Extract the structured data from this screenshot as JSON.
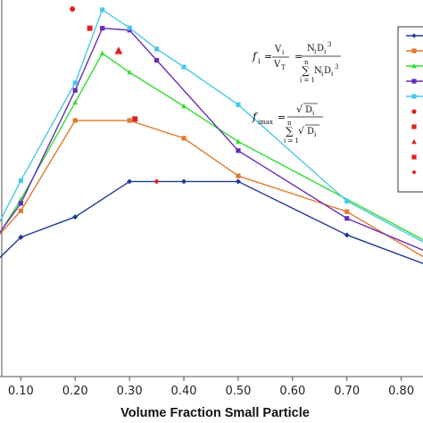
{
  "chart_data": {
    "type": "line",
    "title": "",
    "xlabel": "Volume Fraction Small Particle",
    "ylabel": "",
    "xlim": [
      0.065,
      0.84
    ],
    "ylim": [
      0.0,
      1.0
    ],
    "x_tick_labels": [
      "0.10",
      "0.20",
      "0.30",
      "0.40",
      "0.50",
      "0.60",
      "0.70",
      "0.80"
    ],
    "x_ticks": [
      0.1,
      0.2,
      0.3,
      0.4,
      0.5,
      0.6,
      0.7,
      0.8
    ],
    "grid": false,
    "legend": "top-right, entries partially cropped (marker swatches only visible)",
    "series": [
      {
        "color": "#1f3a93",
        "marker": "diamond",
        "x": [
          0.05,
          0.1,
          0.2,
          0.3,
          0.4,
          0.5,
          0.7,
          0.85
        ],
        "y": [
          0.3,
          0.37,
          0.424,
          0.518,
          0.518,
          0.518,
          0.376,
          0.295
        ]
      },
      {
        "color": "#e07a2e",
        "marker": "square",
        "x": [
          0.05,
          0.1,
          0.2,
          0.3,
          0.4,
          0.5,
          0.7,
          0.85
        ],
        "y": [
          0.36,
          0.44,
          0.68,
          0.68,
          0.633,
          0.533,
          0.438,
          0.31
        ]
      },
      {
        "color": "#33dd33",
        "marker": "triangle",
        "x": [
          0.05,
          0.1,
          0.2,
          0.25,
          0.3,
          0.4,
          0.5,
          0.85
        ],
        "y": [
          0.355,
          0.47,
          0.728,
          0.858,
          0.808,
          0.718,
          0.624,
          0.356
        ]
      },
      {
        "color": "#6a2cb8",
        "marker": "square",
        "x": [
          0.05,
          0.1,
          0.2,
          0.25,
          0.3,
          0.35,
          0.5,
          0.7,
          0.85
        ],
        "y": [
          0.36,
          0.46,
          0.76,
          0.925,
          0.92,
          0.84,
          0.6,
          0.42,
          0.33
        ]
      },
      {
        "color": "#48c8e8",
        "marker": "square",
        "x": [
          0.05,
          0.1,
          0.2,
          0.25,
          0.3,
          0.35,
          0.4,
          0.5,
          0.7,
          0.85
        ],
        "y": [
          0.38,
          0.52,
          0.78,
          0.974,
          0.926,
          0.87,
          0.822,
          0.722,
          0.466,
          0.35
        ]
      }
    ],
    "isolated_points": [
      {
        "x": 0.195,
        "y": 0.976,
        "marker": "circle",
        "color": "#e02020"
      },
      {
        "x": 0.227,
        "y": 0.925,
        "marker": "square",
        "color": "#e02020"
      },
      {
        "x": 0.28,
        "y": 0.865,
        "marker": "triangle",
        "color": "#e02020"
      },
      {
        "x": 0.31,
        "y": 0.684,
        "marker": "square",
        "color": "#e02020"
      },
      {
        "x": 0.35,
        "y": 0.518,
        "marker": "diamond",
        "color": "#e02020"
      }
    ]
  },
  "formula": {
    "f_i": "f",
    "f_i_sub": "i",
    "eq": "=",
    "v_i": "V",
    "v_i_sub": "i",
    "v_t": "V",
    "v_t_sub": "T",
    "num2": "N",
    "num2_sub1": "i",
    "num2_d": "D",
    "num2_sub2": "i",
    "num2_sup": "3",
    "sum_top": "n",
    "sum_sym": "∑",
    "sum_bottom": "i = 1",
    "den2_n": "N",
    "den2_sub1": "i",
    "den2_d": "D",
    "den2_sub2": "i",
    "den2_sup": "3",
    "fmax": "f",
    "fmax_sub": "imax",
    "root_sym": "√",
    "root_d": "D",
    "root_sub": "i"
  },
  "colors": {
    "axis": "#555555",
    "red_points": "#e02020"
  }
}
